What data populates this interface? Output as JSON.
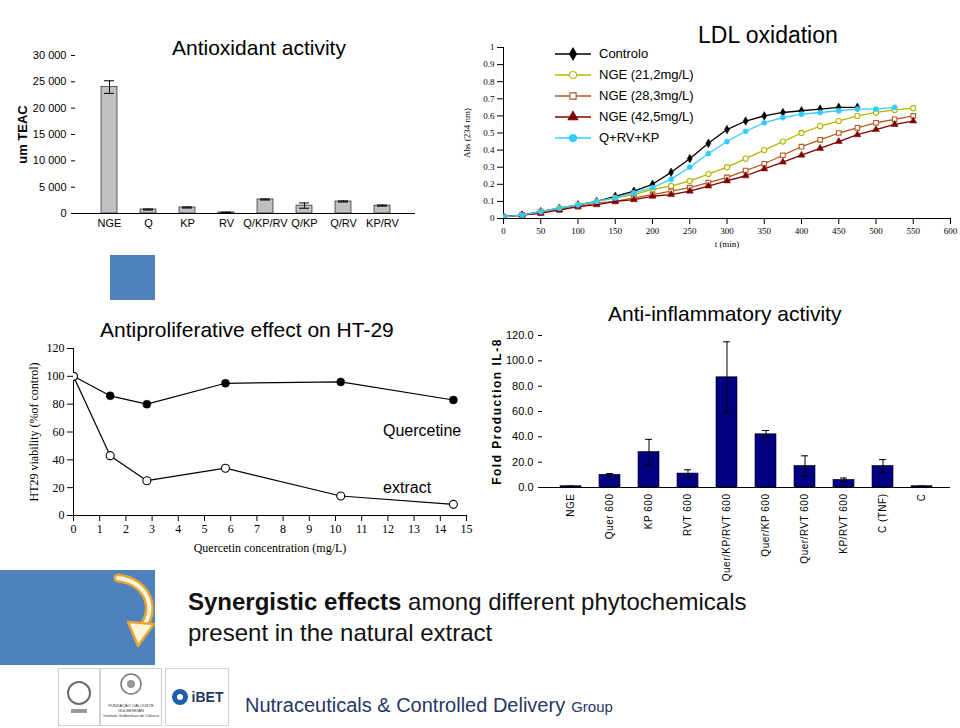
{
  "chart_data": [
    {
      "type": "bar",
      "title": "Antioxidant activity",
      "y_label": "um TEAC",
      "categories": [
        "NGE",
        "Q",
        "KP",
        "RV",
        "Q/KP/RV",
        "Q/KP",
        "Q/RV",
        "KP/RV"
      ],
      "values": [
        24000,
        760,
        1140,
        200,
        2660,
        1500,
        2280,
        1500
      ],
      "errors": [
        1200,
        100,
        100,
        50,
        100,
        500,
        100,
        100
      ],
      "color": "#c0c0c0",
      "ylim": [
        0,
        30000
      ],
      "yticks": [
        0,
        {
          "value": 5000,
          "label": "5 000"
        },
        {
          "value": 10000,
          "label": "10 000"
        },
        {
          "value": 15000,
          "label": "15 000"
        },
        {
          "value": 20000,
          "label": "20 000"
        },
        {
          "value": 25000,
          "label": "25 000"
        },
        {
          "value": 30000,
          "label": "30 000"
        }
      ],
      "grid": false
    },
    {
      "type": "line",
      "title": "LDL oxidation",
      "x_label": "t (min)",
      "y_label": "Abs (234 nm)",
      "x": [
        0,
        25,
        50,
        75,
        100,
        125,
        150,
        175,
        200,
        225,
        250,
        275,
        300,
        325,
        350,
        375,
        400,
        425,
        450,
        475,
        500,
        525,
        550
      ],
      "series": [
        {
          "name": "Controlo",
          "color": "#000000",
          "marker": "diamond",
          "values": [
            0.01,
            0.02,
            0.04,
            0.06,
            0.08,
            0.1,
            0.13,
            0.16,
            0.2,
            0.27,
            0.35,
            0.44,
            0.52,
            0.57,
            0.6,
            0.62,
            0.63,
            0.64,
            0.65,
            0.65,
            null,
            null,
            null
          ]
        },
        {
          "name": "NGE (21,2mg/L)",
          "color": "#b5b500",
          "marker": "circle-open",
          "values": [
            0.01,
            0.02,
            0.04,
            0.06,
            0.08,
            0.1,
            0.12,
            0.14,
            0.17,
            0.19,
            0.22,
            0.26,
            0.3,
            0.35,
            0.4,
            0.45,
            0.5,
            0.54,
            0.57,
            0.6,
            0.62,
            0.635,
            0.645
          ]
        },
        {
          "name": "NGE (28,3mg/L)",
          "color": "#b35a1f",
          "marker": "square-open",
          "values": [
            0.01,
            0.02,
            0.04,
            0.05,
            0.07,
            0.09,
            0.1,
            0.12,
            0.14,
            0.16,
            0.18,
            0.21,
            0.24,
            0.28,
            0.32,
            0.37,
            0.42,
            0.46,
            0.5,
            0.53,
            0.56,
            0.58,
            0.6
          ]
        },
        {
          "name": "NGE (42,5mg/L)",
          "color": "#800000",
          "marker": "triangle",
          "values": [
            0.01,
            0.02,
            0.03,
            0.05,
            0.07,
            0.08,
            0.1,
            0.11,
            0.13,
            0.14,
            0.16,
            0.19,
            0.22,
            0.25,
            0.29,
            0.33,
            0.37,
            0.41,
            0.45,
            0.49,
            0.52,
            0.55,
            0.57
          ]
        },
        {
          "name": "Q+RV+KP",
          "color": "#33ccff",
          "marker": "circle",
          "values": [
            0.01,
            0.02,
            0.04,
            0.06,
            0.08,
            0.1,
            0.12,
            0.15,
            0.18,
            0.23,
            0.3,
            0.38,
            0.45,
            0.51,
            0.56,
            0.59,
            0.61,
            0.62,
            0.63,
            0.64,
            0.64,
            0.65,
            null
          ]
        }
      ],
      "xlim": [
        0,
        600
      ],
      "xticks": [
        0,
        50,
        100,
        150,
        200,
        250,
        300,
        350,
        400,
        450,
        500,
        550,
        600
      ],
      "ylim": [
        0,
        1
      ],
      "yticks": [
        0,
        0.1,
        0.2,
        0.3,
        0.4,
        0.5,
        0.6,
        0.7,
        0.8,
        0.9,
        1
      ],
      "legend": "upper left"
    },
    {
      "type": "line",
      "title": "Antiproliferative effect on HT-29",
      "x_label": "Quercetin concentration (mg/L)",
      "y_label": "HT29 viability (%of control)",
      "x": [
        0,
        1.4,
        2.8,
        5.8,
        10.2,
        14.5
      ],
      "series": [
        {
          "name": "Quercetine",
          "color": "#000000",
          "marker": "circle",
          "values": [
            100,
            86,
            80,
            95,
            96,
            83
          ]
        },
        {
          "name": "extract",
          "color": "#000000",
          "marker": "circle-open",
          "values": [
            100,
            43,
            25,
            34,
            14,
            8
          ]
        }
      ],
      "xlim": [
        0,
        15
      ],
      "xticks": [
        0,
        1,
        2,
        3,
        4,
        5,
        6,
        7,
        8,
        9,
        10,
        11,
        12,
        13,
        14,
        15
      ],
      "ylim": [
        0,
        120
      ],
      "yticks": [
        0,
        20,
        40,
        60,
        80,
        100,
        120
      ]
    },
    {
      "type": "bar",
      "title": "Anti-inflammatory activity",
      "y_label": "Fold Production IL-8",
      "categories": [
        "NGE",
        "Quer 600",
        "KP 600",
        "RVT 600",
        "Quer/KP/RVT 600",
        "Quer/KP 600",
        "Quer/RVT 600",
        "KP/RVT 600",
        "C (TNF)",
        "C"
      ],
      "values": [
        1,
        10,
        28,
        11,
        87,
        42,
        17,
        6,
        17,
        1
      ],
      "errors": [
        0,
        1,
        10,
        3,
        28,
        3,
        8,
        1.5,
        5,
        0
      ],
      "color": "#000080",
      "ylim": [
        0,
        120
      ],
      "yticks": [
        {
          "value": 0,
          "label": "0.0"
        },
        {
          "value": 20,
          "label": "20.0"
        },
        {
          "value": 40,
          "label": "40.0"
        },
        {
          "value": 60,
          "label": "60.0"
        },
        {
          "value": 80,
          "label": "80.0"
        },
        {
          "value": 100,
          "label": "100.0"
        },
        {
          "value": 120,
          "label": "120.0"
        }
      ],
      "grid": false
    }
  ],
  "slide": {
    "message_bold": "Synergistic effects",
    "message": " among different phytochemicals present in the  natural extract",
    "footer": "Nutraceuticals & Controlled Delivery",
    "footer_small": "Group",
    "logos": [
      "FUNDAÇÃO CALOUSTE GULBENKIAN",
      "Instituto Gulbenkian de Ciência",
      "iBET"
    ]
  }
}
